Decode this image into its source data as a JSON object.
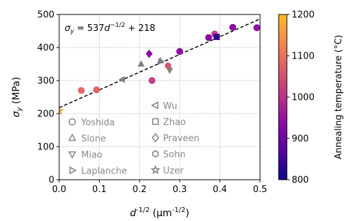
{
  "chart_data": {
    "type": "scatter",
    "xlabel": "d",
    "xlabel_sup": "-1/2",
    "xlabel_units_open": " (μm",
    "xlabel_units_sup": "-1/2",
    "xlabel_units_close": ")",
    "ylabel": "σ",
    "ylabel_sub": "y",
    "ylabel_units": " (MPa)",
    "xlim": [
      0,
      0.5
    ],
    "ylim": [
      0,
      500
    ],
    "xticks": [
      0.0,
      0.1,
      0.2,
      0.3,
      0.4,
      0.5
    ],
    "xtick_labels": [
      "0.0",
      "0.1",
      "0.2",
      "0.3",
      "0.4",
      "0.5"
    ],
    "yticks": [
      0,
      100,
      200,
      300,
      400,
      500
    ],
    "ytick_labels": [
      "0",
      "100",
      "200",
      "300",
      "400",
      "500"
    ],
    "grid": true,
    "fit": {
      "slope": 537,
      "intercept": 218,
      "x_range": [
        0,
        0.5
      ],
      "label_prefix": "σ",
      "label_sub": "y",
      "label_eq": " = 537",
      "label_d": "d",
      "label_sup": "−1/2",
      "label_tail": " + 218",
      "style": "dashed",
      "color": "#000000"
    },
    "colorbar": {
      "label": "Annealing temperature (°C)",
      "range": [
        800,
        1200
      ],
      "ticks": [
        800,
        900,
        1000,
        1100,
        1200
      ],
      "tick_labels": [
        "800",
        "900",
        "1000",
        "1100",
        "1200"
      ],
      "colormap": "plasma",
      "stops": [
        "#0d0887",
        "#6a00a8",
        "#b12a90",
        "#e16462",
        "#fca636",
        "#f0f921"
      ]
    },
    "legend": {
      "placement": "lower-center",
      "text_color": "#888888",
      "entries": [
        {
          "marker": "circle",
          "label": "Yoshida"
        },
        {
          "marker": "triangle-up",
          "label": "Slone"
        },
        {
          "marker": "triangle-down",
          "label": "Miao"
        },
        {
          "marker": "triangle-right",
          "label": "Laplanche"
        },
        {
          "marker": "triangle-left",
          "label": "Wu"
        },
        {
          "marker": "square",
          "label": "Zhao"
        },
        {
          "marker": "diamond",
          "label": "Praveen"
        },
        {
          "marker": "hexagon",
          "label": "Sohn"
        },
        {
          "marker": "star",
          "label": "Uzer"
        }
      ]
    },
    "series": [
      {
        "marker": "circle",
        "points": [
          {
            "x": 0.055,
            "y": 270,
            "color": "#e5676b"
          },
          {
            "x": 0.093,
            "y": 272,
            "color": "#e16462"
          },
          {
            "x": 0.231,
            "y": 300,
            "color": "#c63f82"
          },
          {
            "x": 0.3,
            "y": 388,
            "color": "#8e0ea4"
          },
          {
            "x": 0.372,
            "y": 430,
            "color": "#8a09a5"
          },
          {
            "x": 0.387,
            "y": 441,
            "color": "#c63f82"
          },
          {
            "x": 0.432,
            "y": 461,
            "color": "#8e0ea4"
          },
          {
            "x": 0.492,
            "y": 460,
            "color": "#8e0ea4"
          }
        ]
      },
      {
        "marker": "triangle-up",
        "points": [
          {
            "x": 0.204,
            "y": 350,
            "color": "#808080"
          },
          {
            "x": 0.252,
            "y": 360,
            "color": "#808080"
          }
        ]
      },
      {
        "marker": "triangle-down",
        "points": [
          {
            "x": 0.275,
            "y": 331,
            "color": "#808080"
          }
        ]
      },
      {
        "marker": "triangle-right",
        "points": [
          {
            "x": 0.253,
            "y": 358,
            "color": "#808080"
          }
        ]
      },
      {
        "marker": "triangle-left",
        "points": [
          {
            "x": 0.157,
            "y": 303,
            "color": "#808080"
          }
        ]
      },
      {
        "marker": "square",
        "points": [
          {
            "x": 0.392,
            "y": 432,
            "color": "#2c0594"
          }
        ]
      },
      {
        "marker": "diamond",
        "points": [
          {
            "x": 0.224,
            "y": 381,
            "color": "#8e0ea4"
          }
        ]
      },
      {
        "marker": "hexagon",
        "points": [
          {
            "x": 0.271,
            "y": 345,
            "color": "#d5536f"
          }
        ]
      },
      {
        "marker": "star",
        "points": [
          {
            "x": 0.0,
            "y": 208,
            "color": "#fca636"
          }
        ]
      }
    ]
  }
}
